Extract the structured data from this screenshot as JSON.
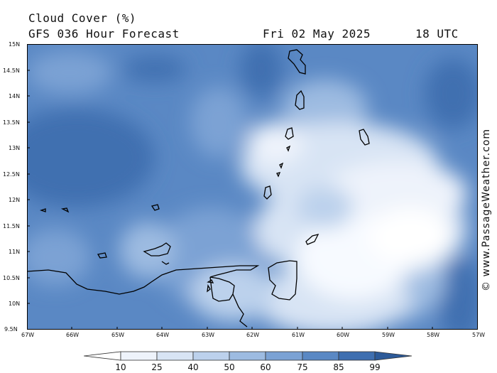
{
  "header": {
    "title": "Cloud Cover (%)",
    "model_line": "GFS 036 Hour Forecast",
    "date": "Fri 02 May 2025",
    "time": "18 UTC"
  },
  "credit": "© www.PassageWeather.com",
  "axes": {
    "lat_labels": [
      "15N",
      "14.5N",
      "14N",
      "13.5N",
      "13N",
      "12.5N",
      "12N",
      "11.5N",
      "11N",
      "10.5N",
      "10N",
      "9.5N"
    ],
    "lon_labels": [
      "67W",
      "66W",
      "65W",
      "64W",
      "63W",
      "62W",
      "61W",
      "60W",
      "59W",
      "58W",
      "57W"
    ]
  },
  "legend": {
    "labels": [
      "10",
      "25",
      "40",
      "50",
      "60",
      "75",
      "85",
      "99"
    ],
    "colors": [
      "#ffffff",
      "#eef3fb",
      "#d8e4f4",
      "#bcd1ec",
      "#9dbbe1",
      "#7ba2d4",
      "#5a88c4",
      "#3f6fb0",
      "#2c5a99"
    ]
  },
  "colors": {
    "land_outline": "#000000",
    "map_border": "#000000"
  }
}
